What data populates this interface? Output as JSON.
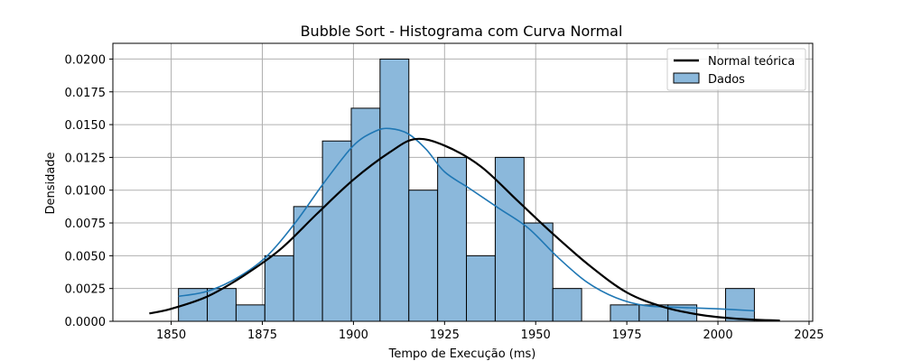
{
  "chart_data": {
    "type": "histogram",
    "title": "Bubble Sort - Histograma com Curva Normal",
    "xlabel": "Tempo de Execução (ms)",
    "ylabel": "Densidade",
    "xlim": [
      1834,
      2026
    ],
    "ylim": [
      0,
      0.0212
    ],
    "x_ticks": [
      1850,
      1875,
      1900,
      1925,
      1950,
      1975,
      2000,
      2025
    ],
    "x_tick_labels": [
      "1850",
      "1875",
      "1900",
      "1925",
      "1950",
      "1975",
      "2000",
      "2025"
    ],
    "y_ticks": [
      0,
      0.0025,
      0.005,
      0.0075,
      0.01,
      0.0125,
      0.015,
      0.0175,
      0.02
    ],
    "y_tick_labels": [
      "0.0000",
      "0.0025",
      "0.0050",
      "0.0075",
      "0.0100",
      "0.0125",
      "0.0150",
      "0.0175",
      "0.0200"
    ],
    "grid": true,
    "legend_position": "top-right",
    "histogram": {
      "name": "Dados",
      "color": "#8bb8db",
      "edge_color": "#000000",
      "bin_start": 1852,
      "bin_width": 7.9,
      "densities": [
        0.0025,
        0.0025,
        0.00125,
        0.005,
        0.00875,
        0.01375,
        0.01625,
        0.02,
        0.01,
        0.0125,
        0.005,
        0.0125,
        0.0075,
        0.0025,
        0,
        0.00125,
        0.00125,
        0.00125,
        0,
        0.0025
      ]
    },
    "series": [
      {
        "name": "Normal teórica",
        "type": "line",
        "color": "#000000",
        "x": [
          1844,
          1850,
          1860,
          1870,
          1880,
          1890,
          1900,
          1910,
          1917,
          1925,
          1935,
          1945,
          1955,
          1965,
          1975,
          1985,
          1995,
          2005,
          2017
        ],
        "y": [
          0.0006,
          0.00095,
          0.0019,
          0.0035,
          0.0055,
          0.0082,
          0.0108,
          0.0129,
          0.0139,
          0.0134,
          0.0118,
          0.0092,
          0.0066,
          0.0042,
          0.0022,
          0.0011,
          0.0005,
          0.0002,
          5e-05
        ]
      },
      {
        "name": "",
        "type": "kde",
        "color": "#1f77b4",
        "x": [
          1852,
          1860,
          1868,
          1876,
          1884,
          1892,
          1900,
          1906,
          1910,
          1915,
          1920,
          1925,
          1932,
          1940,
          1948,
          1956,
          1964,
          1972,
          1980,
          1990,
          2000,
          2010
        ],
        "y": [
          0.0019,
          0.0023,
          0.0033,
          0.0049,
          0.0075,
          0.0106,
          0.0134,
          0.0145,
          0.0147,
          0.0143,
          0.0131,
          0.0114,
          0.0101,
          0.0086,
          0.0071,
          0.0049,
          0.003,
          0.0018,
          0.0012,
          0.00105,
          0.00095,
          0.0008
        ]
      }
    ],
    "legend": [
      "Normal teórica",
      "Dados"
    ]
  }
}
